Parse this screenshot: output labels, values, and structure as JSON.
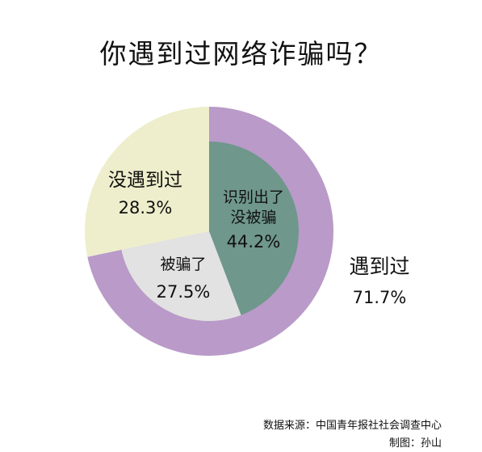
{
  "title": "你遇到过网络诈骗吗？",
  "chart_data": {
    "type": "pie",
    "title": "你遇到过网络诈骗吗？",
    "outer_ring": [
      {
        "label": "遇到过",
        "value": 71.7,
        "value_text": "71.7%",
        "color": "#b99ac8"
      },
      {
        "label": "没遇到过",
        "value": 28.3,
        "value_text": "28.3%",
        "color": "#eeeecc"
      }
    ],
    "inner_pie": [
      {
        "label_lines": [
          "识别出了",
          "没被骗"
        ],
        "value": 44.2,
        "value_text": "44.2%",
        "color": "#6f978c"
      },
      {
        "label_lines": [
          "被骗了"
        ],
        "value": 27.5,
        "value_text": "27.5%",
        "color": "#e2e2e2"
      },
      {
        "label_lines": [
          "没遇到过"
        ],
        "value": 28.3,
        "value_text": "28.3%",
        "color": "#eeeecc"
      }
    ]
  },
  "source": "数据来源：中国青年报社社会调查中心",
  "credit": "制图：孙山"
}
